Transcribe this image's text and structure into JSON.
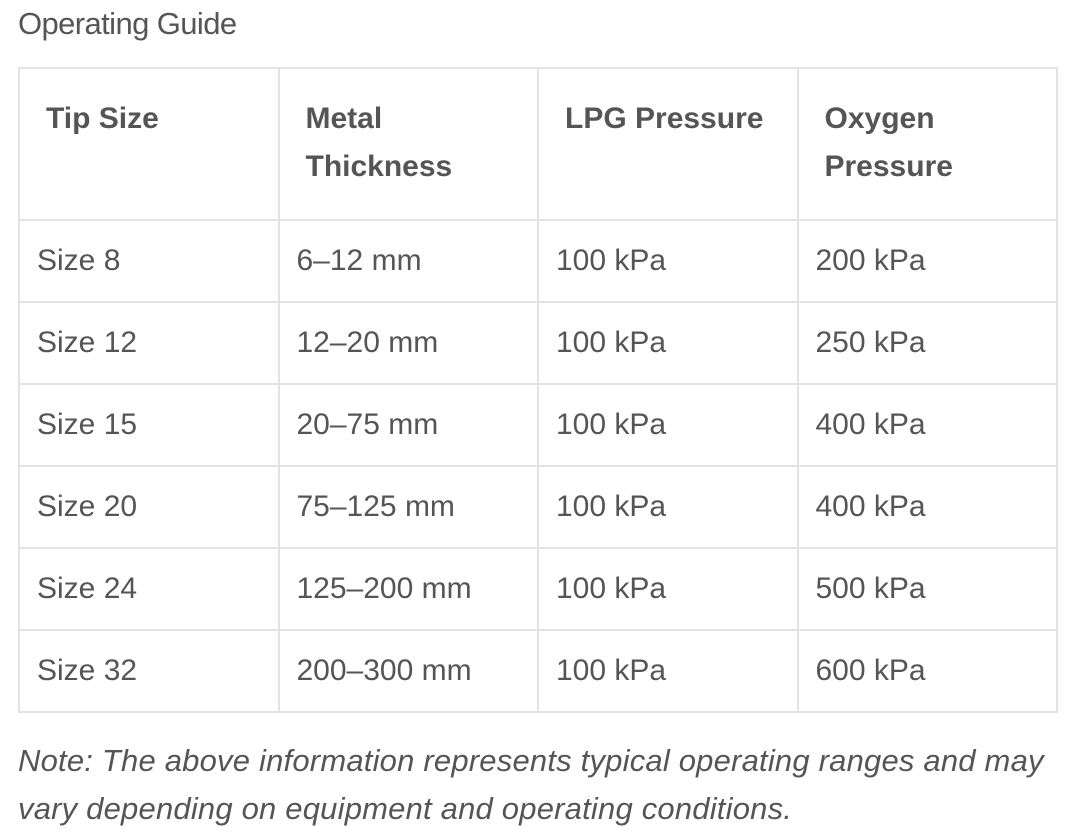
{
  "section_title": "Operating Guide",
  "table": {
    "headers": [
      "Tip Size",
      "Metal Thickness",
      "LPG Pressure",
      "Oxygen Pressure"
    ],
    "rows": [
      [
        "Size 8",
        "6–12 mm",
        "100 kPa",
        "200 kPa"
      ],
      [
        "Size 12",
        "12–20 mm",
        "100 kPa",
        "250 kPa"
      ],
      [
        "Size 15",
        "20–75 mm",
        "100 kPa",
        "400 kPa"
      ],
      [
        "Size 20",
        "75–125 mm",
        "100 kPa",
        "400 kPa"
      ],
      [
        "Size 24",
        "125–200 mm",
        "100 kPa",
        "500 kPa"
      ],
      [
        "Size 32",
        "200–300 mm",
        "100 kPa",
        "600 kPa"
      ]
    ]
  },
  "note": "Note: The above information represents typical operating ranges and may vary depending on equipment and operating conditions."
}
